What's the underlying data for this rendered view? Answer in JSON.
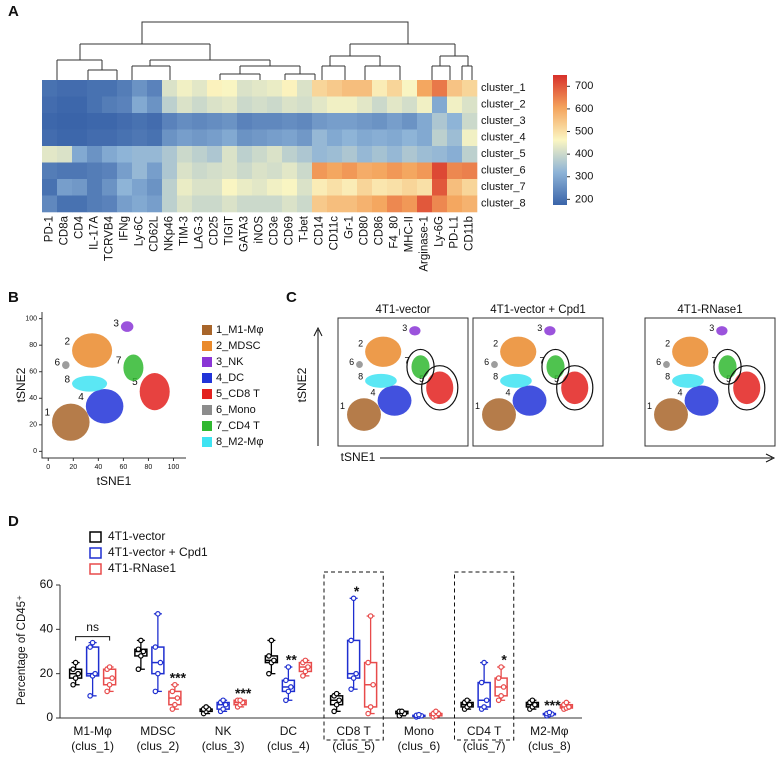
{
  "chart_data": [
    {
      "type": "heatmap",
      "panel": "A",
      "categories": [
        "PD-1",
        "CD8a",
        "CD4",
        "IL-17A",
        "TCRVB4",
        "IFNg",
        "Ly-6C",
        "CD62L",
        "NKp46",
        "TIM-3",
        "LAG-3",
        "CD25",
        "TIGIT",
        "GATA3",
        "iNOS",
        "CD3e",
        "CD69",
        "T-bet",
        "CD14",
        "CD11c",
        "Gr-1",
        "CD80",
        "CD86",
        "F4_80",
        "MHC-II",
        "Arginase-1",
        "Ly-6G",
        "PD-L1",
        "CD11b"
      ],
      "series": [
        {
          "name": "cluster_1",
          "values": [
            200,
            190,
            190,
            200,
            200,
            220,
            260,
            230,
            420,
            450,
            430,
            470,
            460,
            420,
            430,
            440,
            470,
            420,
            520,
            540,
            560,
            560,
            480,
            520,
            460,
            600,
            660,
            550,
            520
          ]
        },
        {
          "name": "cluster_2",
          "values": [
            190,
            180,
            180,
            200,
            220,
            230,
            300,
            260,
            380,
            420,
            400,
            420,
            430,
            400,
            410,
            400,
            420,
            410,
            430,
            450,
            450,
            430,
            400,
            430,
            410,
            450,
            300,
            450,
            420
          ]
        },
        {
          "name": "cluster_3",
          "values": [
            180,
            170,
            170,
            180,
            180,
            190,
            200,
            190,
            230,
            250,
            240,
            250,
            260,
            230,
            240,
            240,
            250,
            240,
            270,
            280,
            280,
            270,
            260,
            280,
            260,
            300,
            360,
            320,
            400
          ]
        },
        {
          "name": "cluster_4",
          "values": [
            190,
            180,
            180,
            190,
            190,
            200,
            210,
            200,
            260,
            280,
            270,
            280,
            300,
            260,
            270,
            280,
            290,
            270,
            330,
            300,
            320,
            300,
            310,
            300,
            320,
            300,
            380,
            340,
            450
          ]
        },
        {
          "name": "cluster_5",
          "values": [
            430,
            420,
            300,
            260,
            300,
            320,
            330,
            330,
            360,
            400,
            380,
            360,
            420,
            380,
            400,
            420,
            380,
            360,
            330,
            340,
            360,
            330,
            350,
            330,
            360,
            340,
            330,
            310,
            380
          ]
        },
        {
          "name": "cluster_6",
          "values": [
            220,
            210,
            210,
            220,
            230,
            280,
            330,
            280,
            360,
            420,
            400,
            410,
            420,
            400,
            420,
            410,
            430,
            400,
            620,
            600,
            620,
            590,
            600,
            620,
            600,
            620,
            720,
            640,
            650
          ]
        },
        {
          "name": "cluster_7",
          "values": [
            200,
            280,
            270,
            220,
            260,
            320,
            290,
            260,
            380,
            440,
            420,
            420,
            460,
            440,
            430,
            450,
            460,
            420,
            480,
            500,
            480,
            520,
            490,
            500,
            520,
            500,
            700,
            560,
            520
          ]
        },
        {
          "name": "cluster_8",
          "values": [
            240,
            200,
            200,
            220,
            230,
            280,
            300,
            280,
            380,
            420,
            400,
            400,
            420,
            400,
            400,
            400,
            420,
            400,
            540,
            560,
            560,
            580,
            600,
            640,
            620,
            700,
            640,
            600,
            580
          ]
        }
      ],
      "clim": [
        175,
        750
      ],
      "cticks": [
        200,
        300,
        400,
        500,
        600,
        700
      ],
      "colormap": [
        "#3a64a9",
        "#8db3d7",
        "#fbf6c2",
        "#f4a35c",
        "#d7302a"
      ]
    },
    {
      "type": "scatter",
      "panel": "B",
      "x_label": "tSNE1",
      "y_label": "tSNE2",
      "xlim": [
        -5,
        110
      ],
      "ylim": [
        -5,
        105
      ],
      "xticks": [
        0,
        20,
        40,
        60,
        80,
        100
      ],
      "yticks": [
        0,
        20,
        40,
        60,
        80,
        100
      ],
      "series": [
        {
          "name": "1_M1-Mφ",
          "id": "1",
          "color": "#a8652a",
          "x": 18,
          "y": 22
        },
        {
          "name": "2_MDSC",
          "id": "2",
          "color": "#ea8a2c",
          "x": 35,
          "y": 76
        },
        {
          "name": "3_NK",
          "id": "3",
          "color": "#8a35d6",
          "x": 63,
          "y": 94
        },
        {
          "name": "4_DC",
          "id": "4",
          "color": "#2133d8",
          "x": 45,
          "y": 34
        },
        {
          "name": "5_CD8 T",
          "id": "5",
          "color": "#e3211f",
          "x": 85,
          "y": 45
        },
        {
          "name": "6_Mono",
          "id": "6",
          "color": "#8c8c8c",
          "x": 14,
          "y": 65
        },
        {
          "name": "7_CD4 T",
          "id": "7",
          "color": "#30b830",
          "x": 68,
          "y": 63
        },
        {
          "name": "8_M2-Mφ",
          "id": "8",
          "color": "#3ee3f2",
          "x": 33,
          "y": 51
        }
      ]
    },
    {
      "type": "scatter-panels",
      "panel": "C",
      "x_label": "tSNE1",
      "y_label": "tSNE2",
      "titles": [
        "4T1-vector",
        "4T1-vector + Cpd1",
        "4T1-RNase1"
      ],
      "circled": [
        4,
        6
      ]
    },
    {
      "type": "box",
      "panel": "D",
      "y_label": "Percentage of CD45⁺",
      "categories": [
        {
          "name": "M1-Mφ",
          "cluster": "(clus_1)"
        },
        {
          "name": "MDSC",
          "cluster": "(clus_2)"
        },
        {
          "name": "NK",
          "cluster": "(clus_3)"
        },
        {
          "name": "DC",
          "cluster": "(clus_4)"
        },
        {
          "name": "CD8 T",
          "cluster": "(clus_5)"
        },
        {
          "name": "Mono",
          "cluster": "(clus_6)"
        },
        {
          "name": "CD4 T",
          "cluster": "(clus_7)"
        },
        {
          "name": "M2-Mφ",
          "cluster": "(clus_8)"
        }
      ],
      "ylim": [
        0,
        60
      ],
      "yticks": [
        0,
        20,
        40,
        60
      ],
      "highlight": [
        4,
        6
      ],
      "series": [
        {
          "name": "4T1-vector",
          "color": "#000000",
          "values": [
            [
              15,
              18,
              20,
              22,
              25
            ],
            [
              22,
              28,
              30,
              31,
              35
            ],
            [
              2,
              3,
              4,
              4,
              5
            ],
            [
              20,
              25,
              26,
              28,
              35
            ],
            [
              3,
              6,
              8,
              10,
              11
            ],
            [
              1,
              2,
              2,
              3,
              3
            ],
            [
              4,
              5,
              6,
              7,
              8
            ],
            [
              4,
              5,
              6,
              7,
              8
            ]
          ]
        },
        {
          "name": "4T1-vector + Cpd1",
          "color": "#1f2fd0",
          "values": [
            [
              10,
              19,
              20,
              32,
              34
            ],
            [
              12,
              20,
              25,
              32,
              47
            ],
            [
              3,
              4,
              6,
              7,
              8
            ],
            [
              8,
              12,
              14,
              17,
              23
            ],
            [
              13,
              18,
              20,
              35,
              54
            ],
            [
              0.5,
              0.8,
              1,
              1.2,
              1.5
            ],
            [
              4,
              5,
              8,
              16,
              25
            ],
            [
              1,
              1.5,
              1.8,
              2,
              2.5
            ]
          ]
        },
        {
          "name": "4T1-RNase1",
          "color": "#e84b4b",
          "values": [
            [
              12,
              15,
              18,
              22,
              23
            ],
            [
              4,
              6,
              9,
              12,
              15
            ],
            [
              5,
              6,
              7,
              8,
              8
            ],
            [
              19,
              21,
              23,
              25,
              26
            ],
            [
              2,
              5,
              15,
              25,
              46
            ],
            [
              0.5,
              1,
              2,
              2,
              3
            ],
            [
              8,
              10,
              14,
              18,
              23
            ],
            [
              4,
              4.5,
              5,
              6,
              7
            ]
          ]
        }
      ],
      "annotations": [
        {
          "category": 0,
          "text": "ns",
          "bracket": true
        },
        {
          "category": 1,
          "series": 2,
          "text": "***"
        },
        {
          "category": 2,
          "series": 2,
          "text": "***"
        },
        {
          "category": 3,
          "series": 1,
          "text": "**"
        },
        {
          "category": 4,
          "series": 1,
          "text": "*"
        },
        {
          "category": 6,
          "series": 2,
          "text": "*"
        },
        {
          "category": 7,
          "series": 1,
          "text": "***"
        }
      ]
    }
  ]
}
